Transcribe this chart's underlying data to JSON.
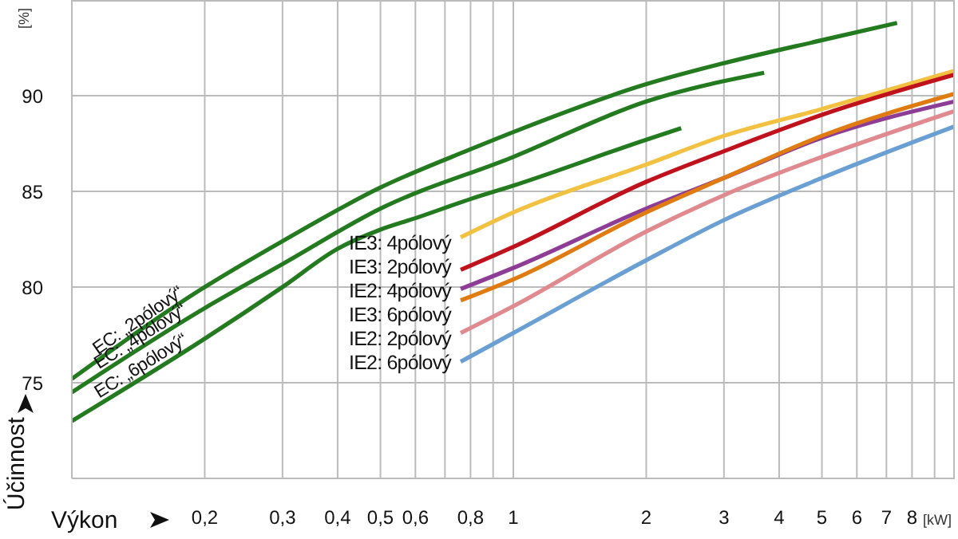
{
  "chart_data": {
    "type": "line",
    "xlabel": "Výkon",
    "ylabel": "Účinnost",
    "annotations": [
      "[%]",
      "[kW]"
    ],
    "log": "x",
    "grid": true,
    "legend": false,
    "marker": "none",
    "line_style": "solid",
    "xlim": [
      0.1,
      10
    ],
    "ylim": [
      70,
      95
    ],
    "xticks": [
      {
        "value": 0.2,
        "label": "0,2"
      },
      {
        "value": 0.3,
        "label": "0,3"
      },
      {
        "value": 0.4,
        "label": "0,4"
      },
      {
        "value": 0.5,
        "label": "0,5"
      },
      {
        "value": 0.6,
        "label": "0,6"
      },
      {
        "value": 0.7,
        "label": null
      },
      {
        "value": 0.8,
        "label": "0,8"
      },
      {
        "value": 0.9,
        "label": null
      },
      1,
      2,
      3,
      4,
      5,
      6,
      7,
      8,
      {
        "value": 9,
        "label": null
      }
    ],
    "yticks": [
      75,
      80,
      85,
      90
    ],
    "series": [
      {
        "name": "EC: „2pólový“",
        "color": "#237a1f",
        "x": [
          0.1,
          0.2,
          0.3,
          0.5,
          0.8,
          1,
          2,
          3,
          5,
          7.4
        ],
        "values": [
          75.2,
          80.0,
          82.4,
          85.2,
          87.2,
          88.1,
          90.6,
          91.7,
          92.9,
          93.8
        ]
      },
      {
        "name": "EC: „4pólový“",
        "color": "#237a1f",
        "x": [
          0.1,
          0.2,
          0.3,
          0.5,
          1,
          2,
          3.7
        ],
        "values": [
          74.5,
          78.9,
          81.2,
          84.1,
          86.8,
          89.7,
          91.2
        ]
      },
      {
        "name": "EC: „6pólový“",
        "color": "#237a1f",
        "x": [
          0.1,
          0.2,
          0.3,
          0.4,
          0.5,
          0.6,
          0.8,
          1,
          2,
          2.4
        ],
        "values": [
          73.0,
          77.3,
          80.0,
          82.0,
          83.0,
          83.6,
          84.6,
          85.3,
          87.7,
          88.3
        ]
      },
      {
        "name": "IE3: 4pólový",
        "color": "#f2c141",
        "x": [
          0.76,
          1,
          2,
          3,
          5,
          10
        ],
        "values": [
          82.6,
          83.9,
          86.4,
          87.9,
          89.3,
          91.3
        ]
      },
      {
        "name": "IE3: 2pólový",
        "color": "#c0121c",
        "x": [
          0.76,
          1,
          2,
          3,
          5,
          10
        ],
        "values": [
          80.9,
          82.1,
          85.5,
          87.1,
          89.0,
          91.1
        ]
      },
      {
        "name": "IE2: 4pólový",
        "color": "#8e3d96",
        "x": [
          0.76,
          1,
          2,
          3,
          5,
          10
        ],
        "values": [
          79.9,
          81.0,
          84.1,
          85.7,
          87.8,
          89.7
        ]
      },
      {
        "name": "IE3: 6pólový",
        "color": "#e07b12",
        "x": [
          0.76,
          1,
          2,
          3,
          5,
          10
        ],
        "values": [
          79.3,
          80.4,
          83.9,
          85.7,
          87.9,
          90.1
        ]
      },
      {
        "name": "IE2: 2pólový",
        "color": "#e08a8f",
        "x": [
          0.76,
          1,
          2,
          3,
          5,
          10
        ],
        "values": [
          77.6,
          79.0,
          82.9,
          84.8,
          86.8,
          89.2
        ]
      },
      {
        "name": "IE2: 6pólový",
        "color": "#6a9fd4",
        "x": [
          0.76,
          1,
          2,
          3,
          5,
          10
        ],
        "values": [
          76.1,
          77.6,
          81.4,
          83.5,
          85.7,
          88.4
        ]
      }
    ]
  }
}
